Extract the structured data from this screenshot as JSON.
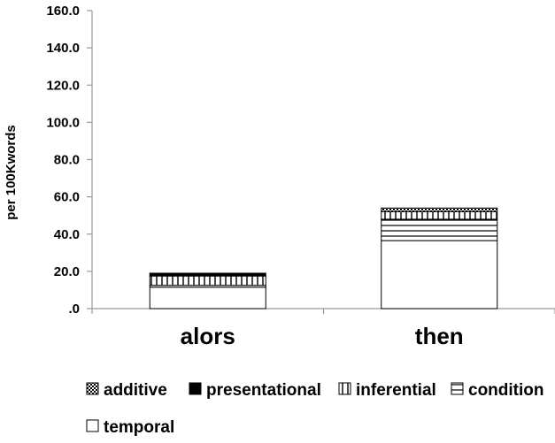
{
  "chart_data": {
    "type": "bar",
    "stacked": true,
    "categories": [
      "alors",
      "then"
    ],
    "series": [
      {
        "name": "temporal",
        "values": [
          11.5,
          36.5
        ],
        "pattern": "white"
      },
      {
        "name": "condition",
        "values": [
          1.0,
          11.5
        ],
        "pattern": "hlines"
      },
      {
        "name": "inferential",
        "values": [
          5.0,
          4.0
        ],
        "pattern": "vlines"
      },
      {
        "name": "presentational",
        "values": [
          1.5,
          0.0
        ],
        "pattern": "solid"
      },
      {
        "name": "additive",
        "values": [
          0.0,
          2.0
        ],
        "pattern": "checker"
      }
    ],
    "legend_order": [
      "additive",
      "presentational",
      "inferential",
      "condition",
      "temporal"
    ],
    "title": "",
    "xlabel": "",
    "ylabel": "per 100Kwords",
    "ylim": [
      0,
      160
    ],
    "yticks": [
      ".0",
      "20.0",
      "40.0",
      "60.0",
      "80.0",
      "100.0",
      "120.0",
      "140.0",
      "160.0"
    ],
    "grid": false,
    "legend_position": "bottom",
    "colors": {
      "fill": "#ffffff",
      "stroke": "#000000",
      "axis": "#999999"
    }
  }
}
